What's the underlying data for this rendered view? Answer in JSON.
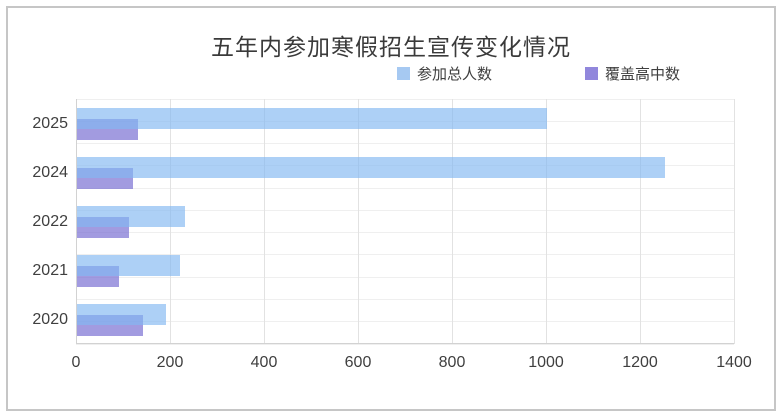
{
  "chart_data": {
    "type": "bar",
    "orientation": "horizontal",
    "title": "五年内参加寒假招生宣传变化情况",
    "categories": [
      "2025",
      "2024",
      "2022",
      "2021",
      "2020"
    ],
    "series": [
      {
        "key": "participants",
        "name": "参加总人数",
        "values": [
          1000,
          1250,
          230,
          220,
          190
        ],
        "bar_color": "rgba(130,183,242,0.66)",
        "legend_color": "#a6c9f2"
      },
      {
        "key": "schools",
        "name": "覆盖高中数",
        "values": [
          130,
          120,
          110,
          90,
          140
        ],
        "bar_color": "rgba(116,106,209,0.67)",
        "legend_color": "#9187dc"
      }
    ],
    "xlabel": "",
    "ylabel": "",
    "xlim": [
      0,
      1400
    ],
    "x_ticks": [
      "0",
      "200",
      "400",
      "600",
      "800",
      "1000",
      "1200",
      "1400"
    ],
    "grid": true,
    "legend_position": "top"
  },
  "colors": {
    "background": "#ffffff",
    "panel_border": "#c6c6c6",
    "title_text": "#3a3a3a",
    "axis_text": "#3f3f3f",
    "vertical_gridline": "#e2e2e2",
    "horizontal_gridline": "#efefef",
    "axis_line": "#d2d2d2"
  }
}
